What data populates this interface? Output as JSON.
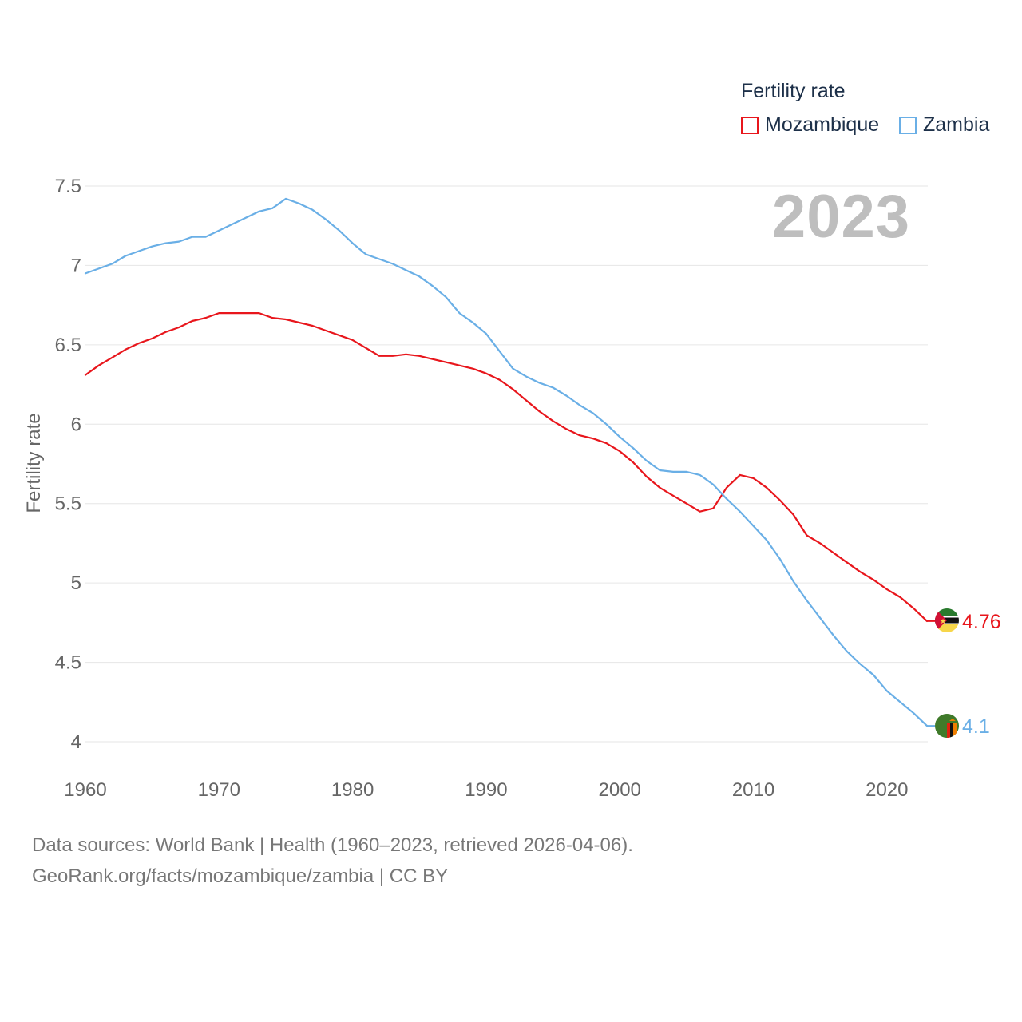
{
  "legend": {
    "title": "Fertility rate",
    "items": [
      {
        "name": "Mozambique",
        "color": "#e8161c"
      },
      {
        "name": "Zambia",
        "color": "#6aafe6"
      }
    ]
  },
  "year_label": "2023",
  "chart_data": {
    "type": "line",
    "title": "Fertility rate",
    "xlabel": "",
    "ylabel": "Fertility rate",
    "xlim": [
      1960,
      2023
    ],
    "ylim": [
      4,
      7.5
    ],
    "xticks": [
      1960,
      1970,
      1980,
      1990,
      2000,
      2010,
      2020
    ],
    "yticks": [
      4,
      4.5,
      5,
      5.5,
      6,
      6.5,
      7,
      7.5
    ],
    "ytick_labels": [
      "4",
      "4.5",
      "5",
      "5.5",
      "6",
      "6.5",
      "7",
      "7.5"
    ],
    "grid": true,
    "x": [
      1960,
      1961,
      1962,
      1963,
      1964,
      1965,
      1966,
      1967,
      1968,
      1969,
      1970,
      1971,
      1972,
      1973,
      1974,
      1975,
      1976,
      1977,
      1978,
      1979,
      1980,
      1981,
      1982,
      1983,
      1984,
      1985,
      1986,
      1987,
      1988,
      1989,
      1990,
      1991,
      1992,
      1993,
      1994,
      1995,
      1996,
      1997,
      1998,
      1999,
      2000,
      2001,
      2002,
      2003,
      2004,
      2005,
      2006,
      2007,
      2008,
      2009,
      2010,
      2011,
      2012,
      2013,
      2014,
      2015,
      2016,
      2017,
      2018,
      2019,
      2020,
      2021,
      2022,
      2023
    ],
    "series": [
      {
        "name": "Mozambique",
        "color": "#e8161c",
        "end_label": "4.76",
        "values": [
          6.31,
          6.37,
          6.42,
          6.47,
          6.51,
          6.54,
          6.58,
          6.61,
          6.65,
          6.67,
          6.7,
          6.7,
          6.7,
          6.7,
          6.67,
          6.66,
          6.64,
          6.62,
          6.59,
          6.56,
          6.53,
          6.48,
          6.43,
          6.43,
          6.44,
          6.43,
          6.41,
          6.39,
          6.37,
          6.35,
          6.32,
          6.28,
          6.22,
          6.15,
          6.08,
          6.02,
          5.97,
          5.93,
          5.91,
          5.88,
          5.83,
          5.76,
          5.67,
          5.6,
          5.55,
          5.5,
          5.45,
          5.47,
          5.6,
          5.68,
          5.66,
          5.6,
          5.52,
          5.43,
          5.3,
          5.25,
          5.19,
          5.13,
          5.07,
          5.02,
          4.96,
          4.91,
          4.84,
          4.76
        ]
      },
      {
        "name": "Zambia",
        "color": "#6aafe6",
        "end_label": "4.1",
        "values": [
          6.95,
          6.98,
          7.01,
          7.06,
          7.09,
          7.12,
          7.14,
          7.15,
          7.18,
          7.18,
          7.22,
          7.26,
          7.3,
          7.34,
          7.36,
          7.42,
          7.39,
          7.35,
          7.29,
          7.22,
          7.14,
          7.07,
          7.04,
          7.01,
          6.97,
          6.93,
          6.87,
          6.8,
          6.7,
          6.64,
          6.57,
          6.46,
          6.35,
          6.3,
          6.26,
          6.23,
          6.18,
          6.12,
          6.07,
          6.0,
          5.92,
          5.85,
          5.77,
          5.71,
          5.7,
          5.7,
          5.68,
          5.62,
          5.53,
          5.45,
          5.36,
          5.27,
          5.15,
          5.01,
          4.89,
          4.78,
          4.67,
          4.57,
          4.49,
          4.42,
          4.32,
          4.25,
          4.18,
          4.1
        ]
      }
    ]
  },
  "footer": {
    "line1": "Data sources: World Bank | Health (1960–2023, retrieved 2026-04-06).",
    "line2": "GeoRank.org/facts/mozambique/zambia | CC BY"
  }
}
